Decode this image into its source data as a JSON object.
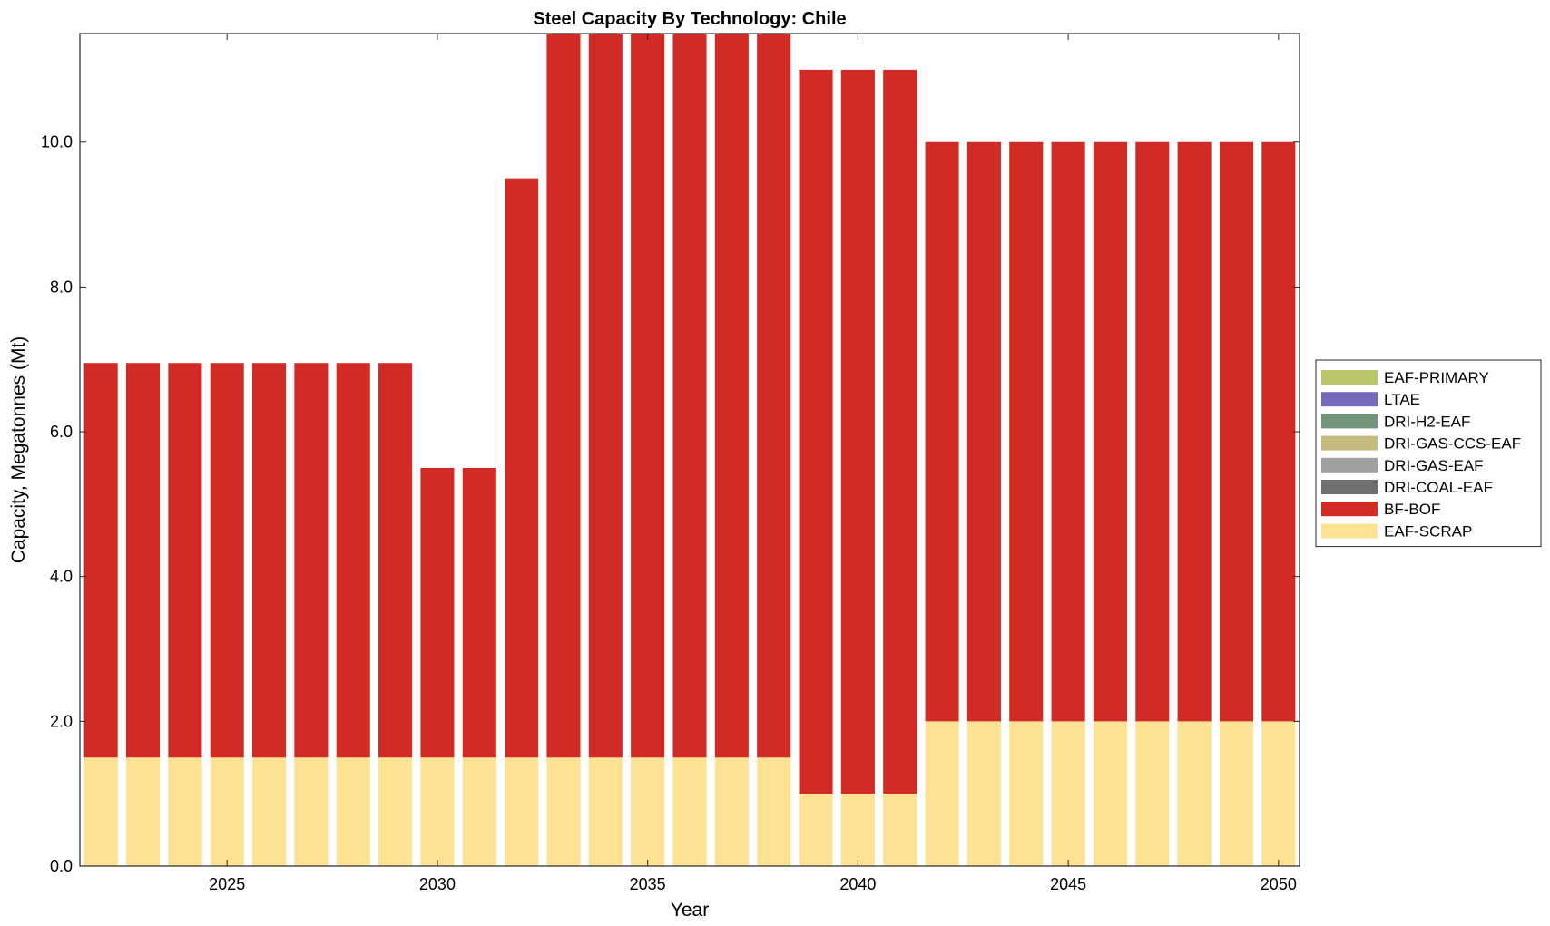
{
  "chart_data": {
    "type": "bar",
    "stacked": true,
    "title": "Steel Capacity By Technology: Chile",
    "xlabel": "Year",
    "ylabel": "Capacity, Megatonnes (Mt)",
    "xlim": [
      2021.5,
      2050.5
    ],
    "ylim": [
      0,
      11.5
    ],
    "xticks": [
      2025,
      2030,
      2035,
      2040,
      2045,
      2050
    ],
    "yticks": [
      0,
      2,
      4,
      6,
      8,
      10
    ],
    "ytick_labels": [
      "0.0",
      "2.0",
      "4.0",
      "6.0",
      "8.0",
      "10.0"
    ],
    "grid": false,
    "legend_position": "right-outside",
    "categories": [
      2022,
      2023,
      2024,
      2025,
      2026,
      2027,
      2028,
      2029,
      2030,
      2031,
      2032,
      2033,
      2034,
      2035,
      2036,
      2037,
      2038,
      2039,
      2040,
      2041,
      2042,
      2043,
      2044,
      2045,
      2046,
      2047,
      2048,
      2049,
      2050
    ],
    "series": [
      {
        "name": "EAF-SCRAP",
        "color": "#fde293",
        "values": [
          1.5,
          1.5,
          1.5,
          1.5,
          1.5,
          1.5,
          1.5,
          1.5,
          1.5,
          1.5,
          1.5,
          1.5,
          1.5,
          1.5,
          1.5,
          1.5,
          1.5,
          1,
          1,
          1,
          2,
          2,
          2,
          2,
          2,
          2,
          2,
          2,
          2
        ]
      },
      {
        "name": "BF-BOF",
        "color": "#d22b25",
        "values": [
          5.45,
          5.45,
          5.45,
          5.45,
          5.45,
          5.45,
          5.45,
          5.45,
          4.0,
          4.0,
          8.0,
          10.5,
          10.5,
          10.5,
          10.5,
          10.5,
          10.5,
          10,
          10,
          10,
          8,
          8,
          8,
          8,
          8,
          8,
          8,
          8,
          8
        ]
      },
      {
        "name": "DRI-COAL-EAF",
        "color": "#6f6f6f",
        "values": [
          0,
          0,
          0,
          0,
          0,
          0,
          0,
          0,
          0,
          0,
          0,
          0,
          0,
          0,
          0,
          0,
          0,
          0,
          0,
          0,
          0,
          0,
          0,
          0,
          0,
          0,
          0,
          0,
          0
        ]
      },
      {
        "name": "DRI-GAS-EAF",
        "color": "#a0a0a0",
        "values": [
          0,
          0,
          0,
          0,
          0,
          0,
          0,
          0,
          0,
          0,
          0,
          0,
          0,
          0,
          0,
          0,
          0,
          0,
          0,
          0,
          0,
          0,
          0,
          0,
          0,
          0,
          0,
          0,
          0
        ]
      },
      {
        "name": "DRI-GAS-CCS-EAF",
        "color": "#c4bb7f",
        "values": [
          0,
          0,
          0,
          0,
          0,
          0,
          0,
          0,
          0,
          0,
          0,
          0,
          0,
          0,
          0,
          0,
          0,
          0,
          0,
          0,
          0,
          0,
          0,
          0,
          0,
          0,
          0,
          0,
          0
        ]
      },
      {
        "name": "DRI-H2-EAF",
        "color": "#71967a",
        "values": [
          0,
          0,
          0,
          0,
          0,
          0,
          0,
          0,
          0,
          0,
          0,
          0,
          0,
          0,
          0,
          0,
          0,
          0,
          0,
          0,
          0,
          0,
          0,
          0,
          0,
          0,
          0,
          0,
          0
        ]
      },
      {
        "name": "LTAE",
        "color": "#7469bb",
        "values": [
          0,
          0,
          0,
          0,
          0,
          0,
          0,
          0,
          0,
          0,
          0,
          0,
          0,
          0,
          0,
          0,
          0,
          0,
          0,
          0,
          0,
          0,
          0,
          0,
          0,
          0,
          0,
          0,
          0
        ]
      },
      {
        "name": "EAF-PRIMARY",
        "color": "#bac66a",
        "values": [
          0,
          0,
          0,
          0,
          0,
          0,
          0,
          0,
          0,
          0,
          0,
          0,
          0,
          0,
          0,
          0,
          0,
          0,
          0,
          0,
          0,
          0,
          0,
          0,
          0,
          0,
          0,
          0,
          0
        ]
      }
    ]
  }
}
